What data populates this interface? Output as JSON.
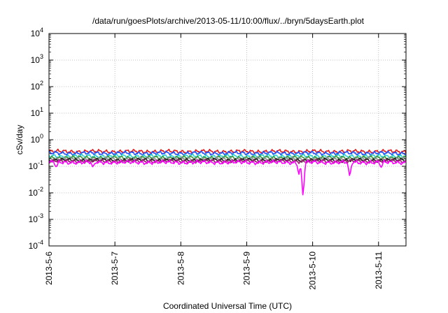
{
  "chart_data": {
    "type": "line",
    "title": "/data/run/goesPlots/archive/2013-05-11/10:00/flux/../bryn/5daysEarth.plot",
    "xlabel": "Coordinated Universal Time (UTC)",
    "ylabel": "cSv/day",
    "y_scale": "log",
    "ylim": [
      0.0001,
      10000
    ],
    "y_ticks": [
      {
        "value": 0.0001,
        "mantissa": "10",
        "exp": "-4"
      },
      {
        "value": 0.001,
        "mantissa": "10",
        "exp": "-3"
      },
      {
        "value": 0.01,
        "mantissa": "10",
        "exp": "-2"
      },
      {
        "value": 0.1,
        "mantissa": "10",
        "exp": "-1"
      },
      {
        "value": 1,
        "mantissa": "10",
        "exp": "0"
      },
      {
        "value": 10,
        "mantissa": "10",
        "exp": "1"
      },
      {
        "value": 100,
        "mantissa": "10",
        "exp": "2"
      },
      {
        "value": 1000,
        "mantissa": "10",
        "exp": "3"
      },
      {
        "value": 10000,
        "mantissa": "10",
        "exp": "4"
      }
    ],
    "xlim": [
      "2013-05-06T00:00",
      "2013-05-11T10:00"
    ],
    "x_ticks": [
      "2013-5-6",
      "2013-5-7",
      "2013-5-8",
      "2013-5-9",
      "2013-5-10",
      "2013-5-11"
    ],
    "x_tick_dates": [
      "2013-05-06",
      "2013-05-07",
      "2013-05-08",
      "2013-05-09",
      "2013-05-10",
      "2013-05-11"
    ],
    "grid": true,
    "series": [
      {
        "color": "#e41a1c",
        "base": 0.36
      },
      {
        "color": "#1f4fff",
        "base": 0.31
      },
      {
        "color": "#2bd1d1",
        "base": 0.24
      },
      {
        "color": "#3a9a3a",
        "base": 0.21
      },
      {
        "color": "#8c8c8c",
        "base": 0.185
      },
      {
        "color": "#202020",
        "base": 0.17
      },
      {
        "color": "#9b1e6e",
        "base": 0.155
      },
      {
        "color": "#ff00ff",
        "base": 0.14,
        "dips": [
          {
            "date": "2013-05-06T02:40",
            "value": 0.09
          },
          {
            "date": "2013-05-06T16:00",
            "value": 0.09
          },
          {
            "date": "2013-05-09T19:00",
            "value": 0.05
          },
          {
            "date": "2013-05-09T20:30",
            "value": 0.007
          },
          {
            "date": "2013-05-10T13:30",
            "value": 0.04
          },
          {
            "date": "2013-05-11T01:00",
            "value": 0.09
          }
        ]
      }
    ]
  }
}
